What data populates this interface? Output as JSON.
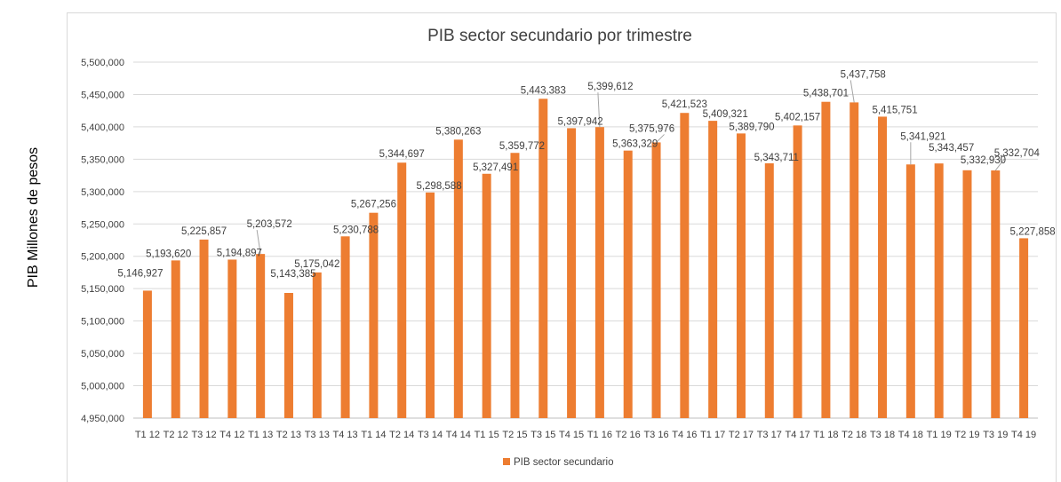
{
  "chart_data": {
    "type": "bar",
    "title": "PIB sector secundario por trimestre",
    "ylabel": "PIB Millones de pesos",
    "xlabel": "",
    "ylim": [
      4950000,
      5500000
    ],
    "ytick_step": 50000,
    "ytick_labels": [
      "4,950,000",
      "5,000,000",
      "5,050,000",
      "5,100,000",
      "5,150,000",
      "5,200,000",
      "5,250,000",
      "5,300,000",
      "5,350,000",
      "5,400,000",
      "5,450,000",
      "5,500,000"
    ],
    "categories": [
      "T1 12",
      "T2 12",
      "T3 12",
      "T4 12",
      "T1 13",
      "T2 13",
      "T3 13",
      "T4 13",
      "T1 14",
      "T2 14",
      "T3 14",
      "T4 14",
      "T1 15",
      "T2 15",
      "T3 15",
      "T4 15",
      "T1 16",
      "T2 16",
      "T3 16",
      "T4 16",
      "T1 17",
      "T2 17",
      "T3 17",
      "T4 17",
      "T1 18",
      "T2 18",
      "T3 18",
      "T4 18",
      "T1 19",
      "T2 19",
      "T3 19",
      "T4 19"
    ],
    "series": [
      {
        "name": "PIB sector secundario",
        "color": "#ED7D31",
        "values": [
          5146927,
          5193620,
          5225857,
          5194897,
          5203572,
          5143385,
          5175042,
          5230788,
          5267256,
          5344697,
          5298588,
          5380263,
          5327491,
          5359772,
          5443383,
          5397942,
          5399612,
          5363329,
          5375976,
          5421523,
          5409321,
          5389790,
          5343711,
          5402157,
          5438701,
          5437758,
          5415751,
          5341921,
          5343457,
          5332930,
          5332704,
          5227858
        ],
        "labels": [
          "5,146,927",
          "5,193,620",
          "5,225,857",
          "5,194,897",
          "5,203,572",
          "5,143,385",
          "5,175,042",
          "5,230,788",
          "5,267,256",
          "5,344,697",
          "5,298,588",
          "5,380,263",
          "5,327,491",
          "5,359,772",
          "5,443,383",
          "5,397,942",
          "5,399,612",
          "5,363,329",
          "5,375,976",
          "5,421,523",
          "5,409,321",
          "5,389,790",
          "5,343,711",
          "5,402,157",
          "5,438,701",
          "5,437,758",
          "5,415,751",
          "5,341,921",
          "5,343,457",
          "5,332,930",
          "5,332,704",
          "5,227,858"
        ]
      }
    ],
    "grid": true,
    "legend": "bottom-center",
    "gridline_color": "#d9d9d9",
    "axis_color": "#bfbfbf"
  }
}
